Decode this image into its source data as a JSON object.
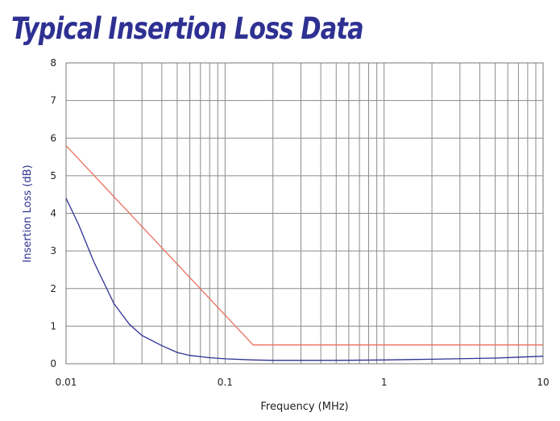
{
  "chart_data": {
    "type": "line",
    "title": "Typical Insertion Loss Data",
    "xlabel": "Frequency (MHz)",
    "ylabel": "Insertion Loss (dB)",
    "x_scale": "log",
    "xlim": [
      0.01,
      10
    ],
    "ylim": [
      0,
      8
    ],
    "x_tick_labels": [
      "0.01",
      "0.1",
      "1",
      "10"
    ],
    "y_tick_labels": [
      "0",
      "1",
      "2",
      "3",
      "4",
      "5",
      "6",
      "7",
      "8"
    ],
    "grid": true,
    "series": [
      {
        "color": "#e8705c",
        "x": [
          0.01,
          0.15,
          10
        ],
        "y": [
          5.8,
          0.5,
          0.5
        ]
      },
      {
        "color": "#2e3192",
        "x": [
          0.01,
          0.012,
          0.015,
          0.02,
          0.025,
          0.03,
          0.04,
          0.05,
          0.06,
          0.08,
          0.1,
          0.15,
          0.2,
          0.3,
          0.5,
          1,
          2,
          5,
          10
        ],
        "y": [
          4.4,
          3.7,
          2.7,
          1.6,
          1.05,
          0.75,
          0.48,
          0.3,
          0.22,
          0.16,
          0.13,
          0.1,
          0.09,
          0.09,
          0.09,
          0.1,
          0.12,
          0.15,
          0.2
        ]
      }
    ]
  }
}
